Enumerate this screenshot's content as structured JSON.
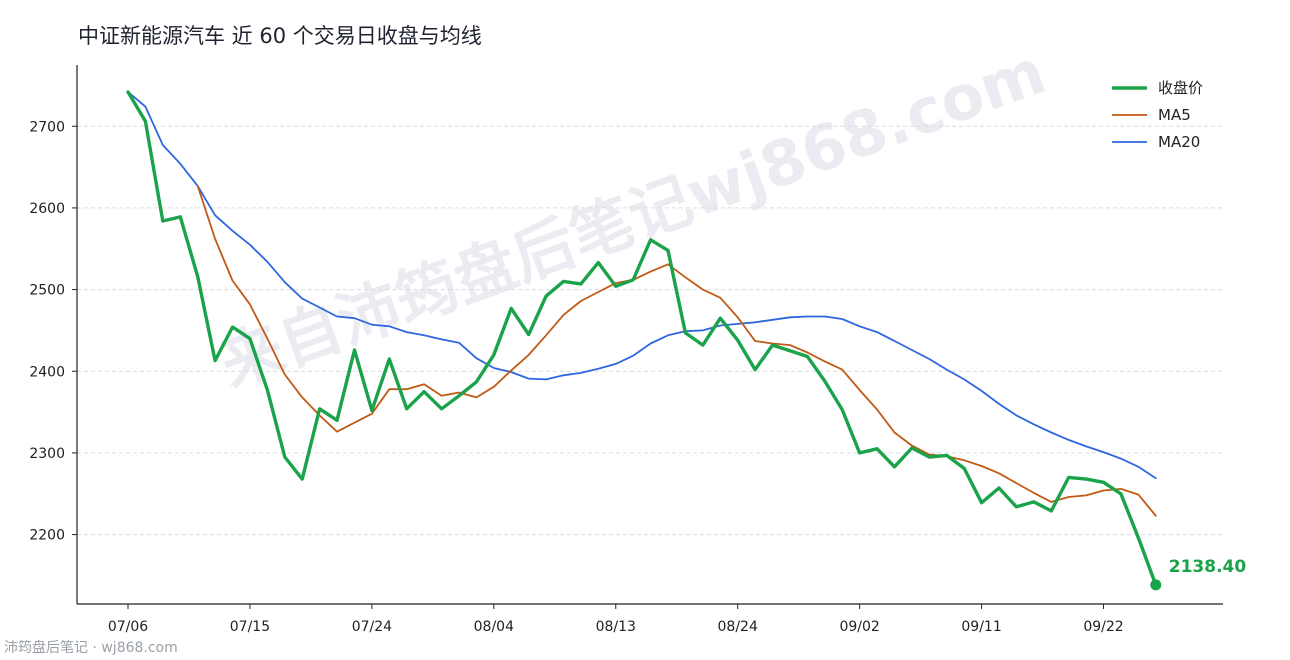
{
  "chart_data": {
    "type": "line",
    "title": "中证新能源汽车 近 60 个交易日收盘与均线",
    "xlabel": "",
    "ylabel": "",
    "ylim": [
      2115,
      2775
    ],
    "yticks": [
      2200,
      2300,
      2400,
      2500,
      2600,
      2700
    ],
    "xtick_labels": [
      "07/06",
      "07/15",
      "07/24",
      "08/04",
      "08/13",
      "08/24",
      "09/02",
      "09/11",
      "09/22"
    ],
    "grid": "horizontal dashed",
    "legend_position": "top-right",
    "last_value_label": "2138.40",
    "series": [
      {
        "name": "收盘价",
        "color": "#1aa34a",
        "values": [
          2742,
          2706,
          2584,
          2589,
          2516,
          2413,
          2454,
          2440,
          2377,
          2295,
          2268,
          2354,
          2340,
          2426,
          2352,
          2415,
          2354,
          2375,
          2354,
          2370,
          2387,
          2420,
          2477,
          2445,
          2492,
          2510,
          2507,
          2533,
          2504,
          2512,
          2561,
          2548,
          2447,
          2432,
          2465,
          2438,
          2402,
          2432,
          2425,
          2418,
          2388,
          2353,
          2300,
          2305,
          2283,
          2306,
          2295,
          2297,
          2281,
          2239,
          2257,
          2234,
          2240,
          2229,
          2270,
          2268,
          2264,
          2250,
          2196,
          2138.4
        ]
      },
      {
        "name": "MA5",
        "color": "#c05a14",
        "values": [
          null,
          null,
          null,
          null,
          2627,
          2562,
          2511,
          2482,
          2440,
          2396,
          2368,
          2346,
          2326,
          2337,
          2348,
          2378,
          2378,
          2384,
          2370,
          2374,
          2368,
          2381,
          2401,
          2420,
          2444,
          2469,
          2486,
          2497,
          2508,
          2512,
          2522,
          2531,
          2515,
          2500,
          2490,
          2466,
          2437,
          2434,
          2432,
          2423,
          2412,
          2402,
          2377,
          2353,
          2325,
          2309,
          2298,
          2296,
          2291,
          2284,
          2275,
          2263,
          2251,
          2240,
          2246,
          2248,
          2254,
          2256,
          2249,
          2223
        ]
      },
      {
        "name": "MA20",
        "color": "#2f66e0",
        "values": [
          2742,
          2724,
          2677,
          2654,
          2627,
          2591,
          2572,
          2555,
          2534,
          2509,
          2489,
          2478,
          2467,
          2465,
          2457,
          2455,
          2448,
          2444,
          2439,
          2435,
          2416,
          2404,
          2399,
          2391,
          2390,
          2395,
          2398,
          2403,
          2409,
          2419,
          2434,
          2444,
          2449,
          2450,
          2456,
          2458,
          2460,
          2463,
          2466,
          2467,
          2467,
          2464,
          2455,
          2448,
          2437,
          2426,
          2415,
          2402,
          2390,
          2376,
          2360,
          2346,
          2335,
          2325,
          2316,
          2308,
          2301,
          2293,
          2283,
          2269
        ]
      }
    ]
  },
  "watermark": "来自沛筠盘后笔记wj868.com",
  "footer": "沛筠盘后笔记 · wj868.com"
}
